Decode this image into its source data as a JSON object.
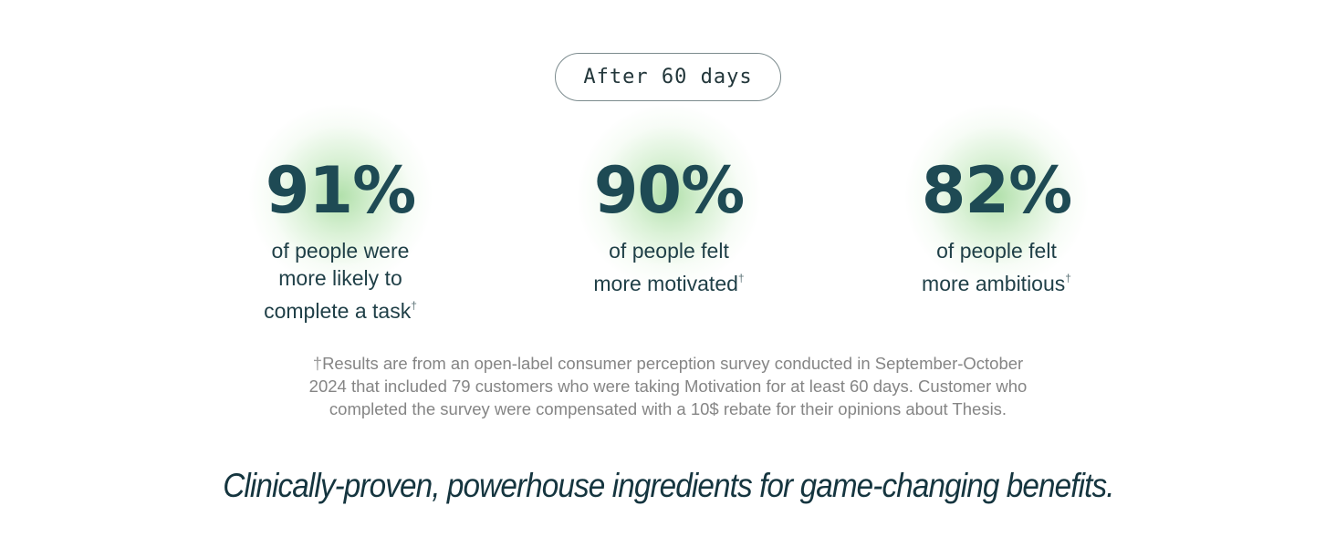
{
  "badge": {
    "label": "After 60 days"
  },
  "stats": [
    {
      "value": "91%",
      "lines": [
        "of people were",
        "more likely to",
        "complete a task"
      ],
      "mark": "†"
    },
    {
      "value": "90%",
      "lines": [
        "of people felt",
        "more motivated"
      ],
      "mark": "†"
    },
    {
      "value": "82%",
      "lines": [
        "of people felt",
        "more ambitious"
      ],
      "mark": "†"
    }
  ],
  "footnote": {
    "mark": "†",
    "lines": [
      "Results are from an open-label consumer perception survey conducted in September-October",
      "2024 that included 79 customers who were taking Motivation for at least 60 days. Customer who",
      "completed the survey were compensated with a 10$ rebate for their opinions about Thesis."
    ]
  },
  "tagline": "Clinically-proven, powerhouse ingredients for game-changing benefits.",
  "colors": {
    "heading_teal": "#1e4a54",
    "glow_green": "#82cd78",
    "footnote_gray": "#858585",
    "pill_border": "#7c8b8e"
  }
}
